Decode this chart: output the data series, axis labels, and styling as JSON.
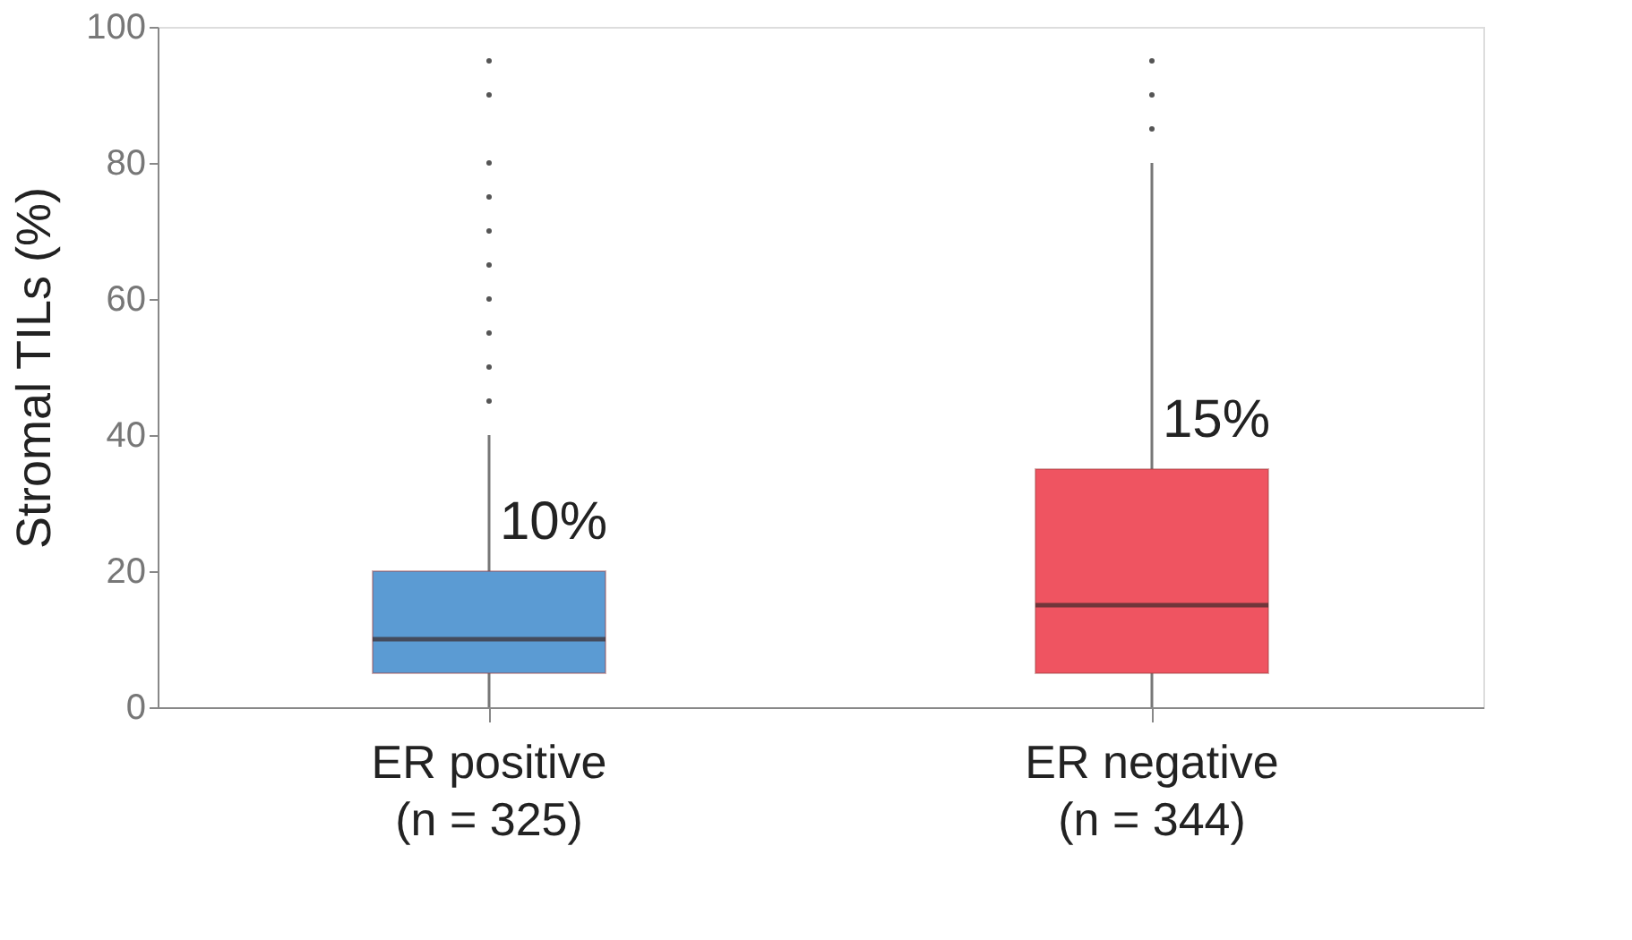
{
  "chart_data": {
    "type": "box",
    "ylabel": "Stromal TILs (%)",
    "categories": [
      "ER positive\n(n = 325)",
      "ER negative\n(n = 344)"
    ],
    "colors": [
      "#5b9bd3",
      "#ef5461"
    ],
    "boxes": [
      {
        "low": 0,
        "q1": 5,
        "median": 10,
        "q3": 20,
        "high": 40,
        "outliers": [
          45,
          50,
          55,
          60,
          65,
          70,
          75,
          80,
          90,
          95
        ]
      },
      {
        "low": 0,
        "q1": 5,
        "median": 15,
        "q3": 35,
        "high": 80,
        "outliers": [
          85,
          90,
          95
        ]
      }
    ],
    "annotations": [
      "10%",
      "15%"
    ],
    "ylim": [
      0,
      100
    ],
    "yticks": [
      0,
      20,
      40,
      60,
      80,
      100
    ],
    "grid": false
  }
}
